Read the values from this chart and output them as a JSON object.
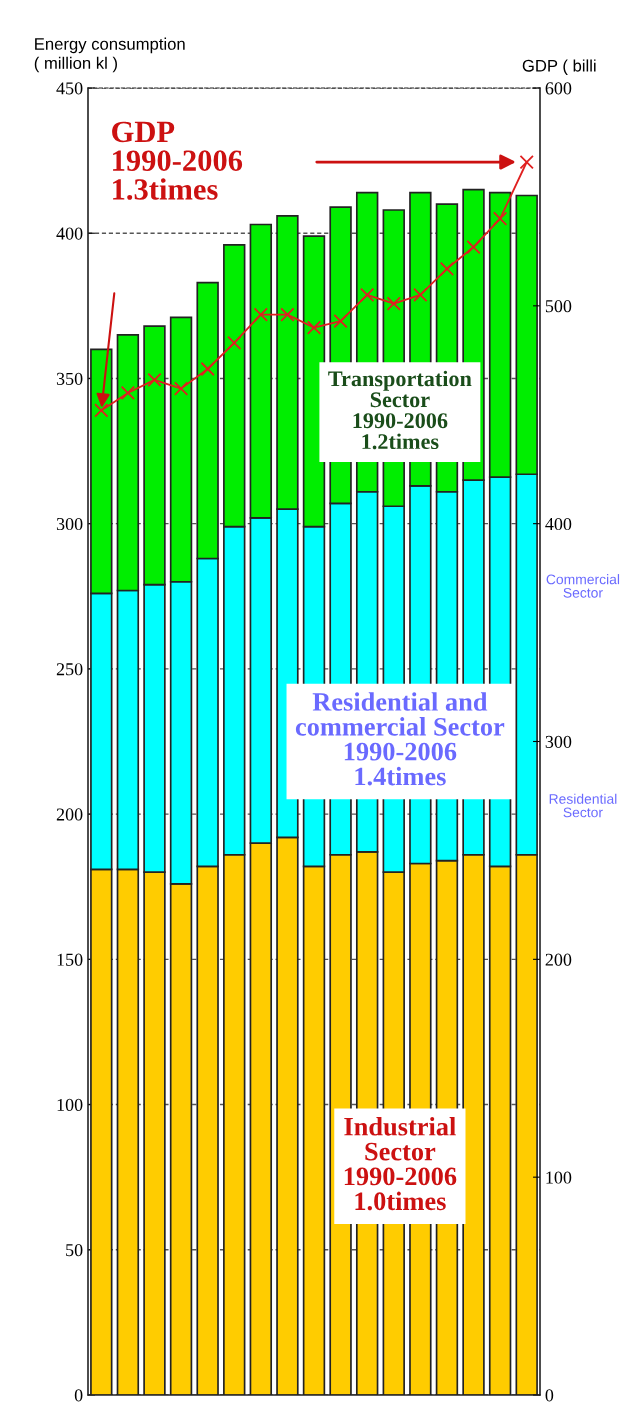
{
  "chart_data": {
    "type": "bar",
    "stacked": true,
    "ylabel": "Energy consumption\n( million kl )",
    "y2label": "GDP ( billi",
    "categories": [
      null,
      null,
      null,
      null,
      null,
      null,
      null,
      null,
      null,
      null,
      null,
      null,
      null,
      null,
      null,
      null,
      null
    ],
    "series": [
      {
        "color": "#ffcc00",
        "values": [
          181,
          181,
          180,
          176,
          182,
          186,
          190,
          192,
          182,
          186,
          187,
          180,
          183,
          184,
          186,
          182,
          186
        ]
      },
      {
        "color": "#00ffff",
        "values": [
          95,
          96,
          99,
          104,
          106,
          113,
          112,
          113,
          117,
          121,
          124,
          126,
          130,
          127,
          129,
          134,
          131
        ]
      },
      {
        "color": "#00ee00",
        "values": [
          84,
          88,
          89,
          91,
          95,
          97,
          101,
          101,
          100,
          102,
          103,
          102,
          101,
          99,
          100,
          98,
          96
        ]
      },
      {
        "type": "line",
        "axis": "y2",
        "color": "#e02020",
        "marker": "cross",
        "values": [
          452,
          460,
          466,
          462,
          471,
          483,
          496,
          496,
          490,
          493,
          505,
          501,
          505,
          517,
          527,
          540,
          566
        ]
      }
    ],
    "ylim": [
      0,
      450
    ],
    "yticks": [
      0,
      50,
      100,
      150,
      200,
      250,
      300,
      350,
      400,
      450
    ],
    "y2lim": [
      0,
      600
    ],
    "y2ticks": [
      0,
      100,
      200,
      300,
      400,
      500,
      600
    ],
    "grid": "y",
    "line_style": "solid",
    "annotations": [
      "GDP\n1990-2006\n1.3times",
      "Transportation\nSector\n1990-2006\n1.2times",
      "Residential and\ncommercial Sector\n1990-2006\n1.4times",
      "Industrial\nSector\n1990-2006\n1.0times",
      "Commercial\nSector",
      "Residential\nSector"
    ]
  }
}
